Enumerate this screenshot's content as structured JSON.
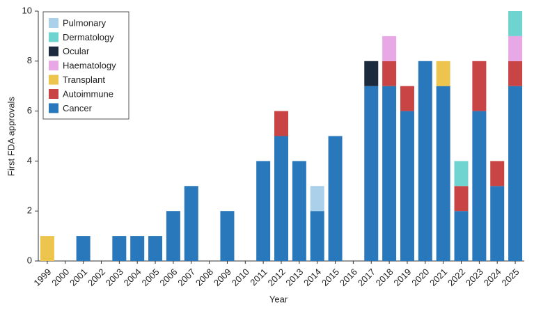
{
  "chart_data": {
    "type": "stacked-bar",
    "x_label": "Year",
    "y_label": "First FDA approvals",
    "categories": [
      "1999",
      "2000",
      "2001",
      "2002",
      "2003",
      "2004",
      "2005",
      "2006",
      "2007",
      "2008",
      "2009",
      "2010",
      "2011",
      "2012",
      "2013",
      "2014",
      "2015",
      "2016",
      "2017",
      "2018",
      "2019",
      "2020",
      "2021",
      "2022",
      "2023",
      "2024",
      "2025"
    ],
    "series": [
      {
        "name": "Cancer",
        "color": "#2a78bc",
        "values": [
          0,
          0,
          1,
          0,
          1,
          1,
          1,
          2,
          3,
          0,
          2,
          0,
          4,
          5,
          4,
          2,
          5,
          0,
          7,
          7,
          6,
          8,
          7,
          2,
          6,
          3,
          7
        ]
      },
      {
        "name": "Autoimmune",
        "color": "#c94545",
        "values": [
          0,
          0,
          0,
          0,
          0,
          0,
          0,
          0,
          0,
          0,
          0,
          0,
          0,
          1,
          0,
          0,
          0,
          0,
          0,
          1,
          1,
          0,
          0,
          1,
          2,
          1,
          1
        ]
      },
      {
        "name": "Transplant",
        "color": "#edc54e",
        "values": [
          1,
          0,
          0,
          0,
          0,
          0,
          0,
          0,
          0,
          0,
          0,
          0,
          0,
          0,
          0,
          0,
          0,
          0,
          0,
          0,
          0,
          0,
          1,
          0,
          0,
          0,
          0
        ]
      },
      {
        "name": "Haematology",
        "color": "#e8a8e6",
        "values": [
          0,
          0,
          0,
          0,
          0,
          0,
          0,
          0,
          0,
          0,
          0,
          0,
          0,
          0,
          0,
          0,
          0,
          0,
          0,
          1,
          0,
          0,
          0,
          0,
          0,
          0,
          1
        ]
      },
      {
        "name": "Ocular",
        "color": "#1c2a3e",
        "values": [
          0,
          0,
          0,
          0,
          0,
          0,
          0,
          0,
          0,
          0,
          0,
          0,
          0,
          0,
          0,
          0,
          0,
          0,
          1,
          0,
          0,
          0,
          0,
          0,
          0,
          0,
          0
        ]
      },
      {
        "name": "Dermatology",
        "color": "#6fd4d0",
        "values": [
          0,
          0,
          0,
          0,
          0,
          0,
          0,
          0,
          0,
          0,
          0,
          0,
          0,
          0,
          0,
          0,
          0,
          0,
          0,
          0,
          0,
          0,
          0,
          1,
          0,
          0,
          1
        ]
      },
      {
        "name": "Pulmonary",
        "color": "#aad0ea",
        "values": [
          0,
          0,
          0,
          0,
          0,
          0,
          0,
          0,
          0,
          0,
          0,
          0,
          0,
          0,
          0,
          1,
          0,
          0,
          0,
          0,
          0,
          0,
          0,
          0,
          0,
          0,
          0
        ]
      }
    ],
    "ylim": [
      0,
      10
    ],
    "yticks": [
      0,
      2,
      4,
      6,
      8,
      10
    ],
    "legend": "upper-left"
  }
}
